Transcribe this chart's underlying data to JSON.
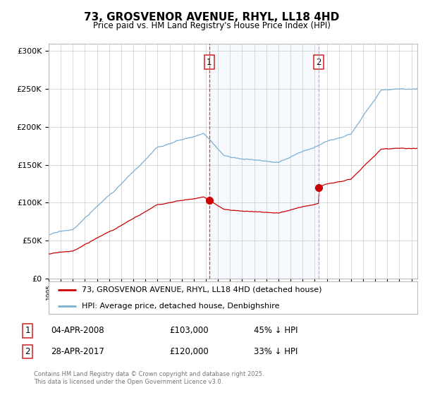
{
  "title": "73, GROSVENOR AVENUE, RHYL, LL18 4HD",
  "subtitle": "Price paid vs. HM Land Registry's House Price Index (HPI)",
  "legend_line1": "73, GROSVENOR AVENUE, RHYL, LL18 4HD (detached house)",
  "legend_line2": "HPI: Average price, detached house, Denbighshire",
  "transaction1_label": "1",
  "transaction1_date": "04-APR-2008",
  "transaction1_price": "£103,000",
  "transaction1_hpi": "45% ↓ HPI",
  "transaction2_label": "2",
  "transaction2_date": "28-APR-2017",
  "transaction2_price": "£120,000",
  "transaction2_hpi": "33% ↓ HPI",
  "copyright": "Contains HM Land Registry data © Crown copyright and database right 2025.\nThis data is licensed under the Open Government Licence v3.0.",
  "property_color": "#cc0000",
  "hpi_color": "#7bafd4",
  "marker1_x": 2008.27,
  "marker2_x": 2017.32,
  "transaction1_y": 103000,
  "transaction2_y": 120000,
  "xlim_start": 1995,
  "xlim_end": 2025.5,
  "ylim": [
    0,
    310000
  ],
  "yticks": [
    0,
    50000,
    100000,
    150000,
    200000,
    250000,
    300000
  ],
  "bg_color": "#ffffff",
  "plot_bg": "#ffffff"
}
